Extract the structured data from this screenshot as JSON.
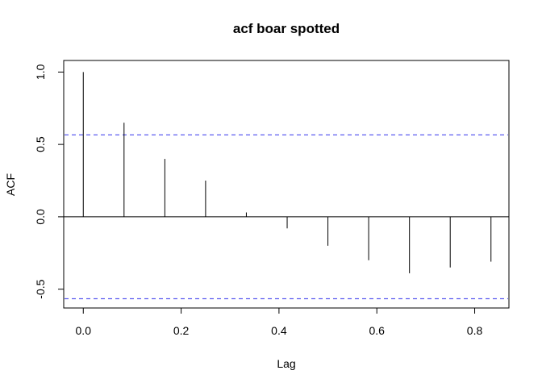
{
  "chart_data": {
    "type": "bar",
    "title": "acf boar spotted",
    "xlabel": "Lag",
    "ylabel": "ACF",
    "x": [
      0.0,
      0.0833,
      0.1667,
      0.25,
      0.3333,
      0.4167,
      0.5,
      0.5833,
      0.6667,
      0.75,
      0.8333
    ],
    "values": [
      1.0,
      0.65,
      0.4,
      0.25,
      0.03,
      -0.08,
      -0.2,
      -0.3,
      -0.39,
      -0.35,
      -0.31
    ],
    "confidence_bounds": [
      0.566,
      -0.566
    ],
    "xlim": [
      -0.04,
      0.87
    ],
    "ylim": [
      -0.63,
      1.08
    ],
    "x_ticks": [
      "0.0",
      "0.2",
      "0.4",
      "0.6",
      "0.8"
    ],
    "y_ticks": [
      "-0.5",
      "0.0",
      "0.5",
      "1.0"
    ],
    "grid": false,
    "colors": {
      "bounds": "#5b5bf0",
      "spikes": "#000000"
    }
  }
}
